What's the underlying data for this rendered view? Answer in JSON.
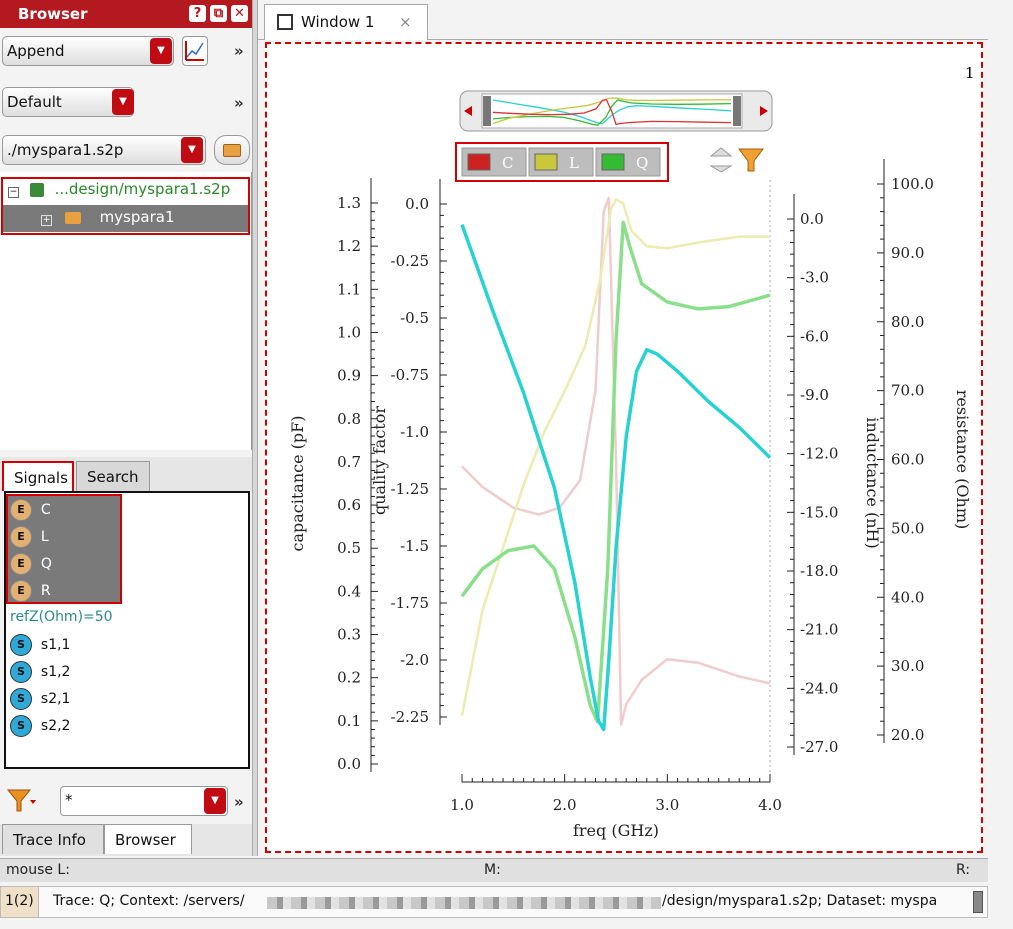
{
  "browser_panel": {
    "title": "Browser",
    "mode_select": "Append",
    "layout_select": "Default",
    "file_select": "./myspara1.s2p",
    "tree": [
      {
        "label": "...design/myspara1.s2p"
      },
      {
        "label": "myspara1"
      }
    ],
    "tabs": [
      "Signals",
      "Search"
    ],
    "signals": [
      {
        "icon": "E",
        "label": "C"
      },
      {
        "icon": "E",
        "label": "L"
      },
      {
        "icon": "E",
        "label": "Q"
      },
      {
        "icon": "E",
        "label": "R"
      }
    ],
    "refz_label": "refZ(Ohm)=50",
    "sparams": [
      {
        "icon": "S",
        "label": "s1,1"
      },
      {
        "icon": "S",
        "label": "s1,2"
      },
      {
        "icon": "S",
        "label": "s2,1"
      },
      {
        "icon": "S",
        "label": "s2,2"
      }
    ],
    "filter_value": "*",
    "bottom_tabs": [
      "Trace Info",
      "Browser"
    ]
  },
  "window_tab": {
    "label": "Window 1",
    "close": "×"
  },
  "plot": {
    "corner_number": "1",
    "legend": [
      {
        "label": "C",
        "color": "#cc2222"
      },
      {
        "label": "L",
        "color": "#c8c83c"
      },
      {
        "label": "Q",
        "color": "#33bb33"
      }
    ]
  },
  "status": {
    "mouse_l": "mouse L:",
    "m": "M:",
    "r": "R:"
  },
  "info": {
    "page": "1(2)",
    "text_start": "Trace: Q; Context: /servers/",
    "text_end": "/design/myspara1.s2p; Dataset: myspa"
  },
  "chart_data": {
    "type": "line",
    "xlabel": "freq (GHz)",
    "xlim": [
      1.0,
      4.0
    ],
    "x_ticks": [
      "1.0",
      "2.0",
      "3.0",
      "4.0"
    ],
    "axes": [
      {
        "label": "capacitance (pF)",
        "ylim": [
          0.0,
          1.3
        ],
        "ticks": [
          "1.3",
          "1.2",
          "1.1",
          "1.0",
          "0.9",
          "0.8",
          "0.7",
          "0.6",
          "0.5",
          "0.4",
          "0.3",
          "0.2",
          "0.1",
          "0.0"
        ]
      },
      {
        "label": "quality factor",
        "ylim": [
          -2.25,
          0.0
        ],
        "ticks": [
          "0.0",
          "-0.25",
          "-0.5",
          "-0.75",
          "-1.0",
          "-1.25",
          "-1.5",
          "-1.75",
          "-2.0",
          "-2.25"
        ]
      },
      {
        "label": "inductance (nH)",
        "ylim": [
          -27.0,
          0.0
        ],
        "ticks": [
          "0.0",
          "-3.0",
          "-6.0",
          "-9.0",
          "-12.0",
          "-15.0",
          "-18.0",
          "-21.0",
          "-24.0",
          "-27.0"
        ]
      },
      {
        "label": "resistance (Ohm)",
        "ylim": [
          20.0,
          100.0
        ],
        "ticks": [
          "100.0",
          "90.0",
          "80.0",
          "70.0",
          "60.0",
          "50.0",
          "40.0",
          "30.0",
          "20.0"
        ]
      }
    ],
    "series": [
      {
        "color": "#28d2d2",
        "x": [
          1.0,
          1.3,
          1.6,
          1.9,
          2.1,
          2.25,
          2.33,
          2.38,
          2.43,
          2.5,
          2.6,
          2.7,
          2.8,
          2.9,
          3.1,
          3.4,
          3.7,
          4.0
        ],
        "y": [
          1.25,
          1.05,
          0.86,
          0.64,
          0.42,
          0.2,
          0.1,
          0.08,
          0.24,
          0.5,
          0.76,
          0.91,
          0.96,
          0.95,
          0.91,
          0.84,
          0.78,
          0.71
        ]
      },
      {
        "color": "#8ae08a",
        "x": [
          1.0,
          1.2,
          1.45,
          1.7,
          1.9,
          2.1,
          2.25,
          2.32,
          2.42,
          2.5,
          2.57,
          2.63,
          2.75,
          3.0,
          3.3,
          3.6,
          4.0
        ],
        "y": [
          -1.72,
          -1.6,
          -1.52,
          -1.5,
          -1.6,
          -1.9,
          -2.2,
          -2.27,
          -1.6,
          -0.6,
          -0.08,
          -0.18,
          -0.35,
          -0.43,
          -0.46,
          -0.45,
          -0.4
        ]
      },
      {
        "color": "#ecebb0",
        "x": [
          1.0,
          1.2,
          1.4,
          1.6,
          1.8,
          2.0,
          2.2,
          2.35,
          2.45,
          2.5,
          2.57,
          2.65,
          2.8,
          3.0,
          3.3,
          3.7,
          4.0
        ],
        "y": [
          -25.4,
          -20.0,
          -16.8,
          -13.6,
          -10.9,
          -8.8,
          -6.5,
          -3.0,
          0.5,
          1.0,
          0.8,
          -0.6,
          -1.4,
          -1.5,
          -1.2,
          -0.9,
          -0.9
        ]
      },
      {
        "color": "#f0cccc",
        "x": [
          1.0,
          1.2,
          1.5,
          1.75,
          1.95,
          2.15,
          2.3,
          2.38,
          2.43,
          2.5,
          2.55,
          2.6,
          2.75,
          3.0,
          3.3,
          3.7,
          4.0
        ],
        "y": [
          59.0,
          56.0,
          53.0,
          52.0,
          53.0,
          57.0,
          70.0,
          96.0,
          98.0,
          60.0,
          21.5,
          24.5,
          28.0,
          31.0,
          30.5,
          28.5,
          27.5
        ]
      }
    ]
  }
}
